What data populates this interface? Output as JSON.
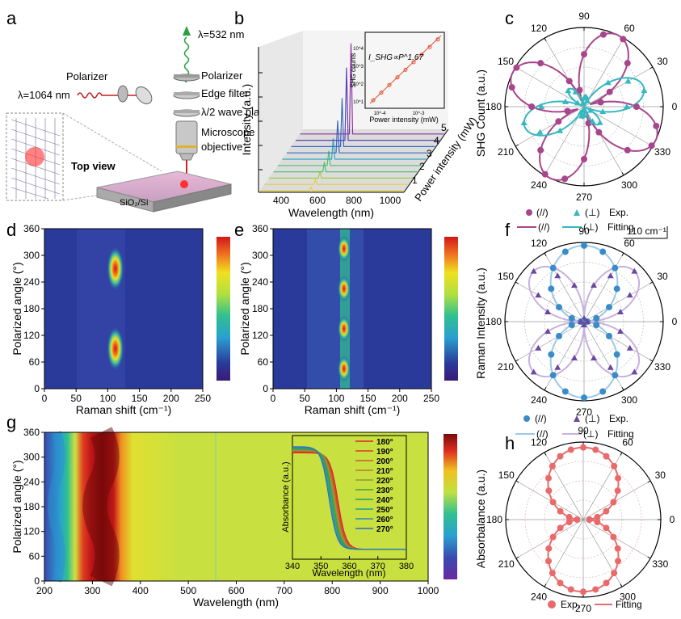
{
  "panels": {
    "a": {
      "letter": "a",
      "wavelength_top": "λ=532 nm",
      "wavelength_in": "λ=1064 nm",
      "labels": [
        "Polarizer",
        "Edge filter",
        "λ/2 wave plate",
        "Microscope",
        "objective",
        "Polarizer"
      ],
      "top_view": "Top view",
      "substrate": "SiO₂/Si"
    },
    "b": {
      "letter": "b",
      "ylabel": "Intensity (a.u.)",
      "xlabel": "Wavelength (nm)",
      "zlabel": "Power intensity (mW)",
      "xticks": [
        "400",
        "600",
        "800",
        "1000"
      ],
      "zticks": [
        "1",
        "2",
        "3",
        "4",
        "5"
      ],
      "inset_label": "I_SHG∝P^1.67",
      "inset_ylabel": "SHG counts",
      "inset_xlabel": "Power intensity (mW)",
      "inset_xticks": [
        "10^-4",
        "10^-3"
      ],
      "inset_yticks": [
        "10^1",
        "10^2",
        "10^3",
        "10^4"
      ]
    },
    "c": {
      "letter": "c",
      "ylabel": "SHG Count (a.u.)",
      "angles": [
        "90",
        "60",
        "30",
        "0",
        "330",
        "300",
        "270",
        "240",
        "210",
        "180",
        "150",
        "120"
      ],
      "legend_exp": [
        "(//)",
        "(⊥)",
        "Exp."
      ],
      "legend_fit": [
        "(//)",
        "(⊥)",
        "Fitting"
      ]
    },
    "d": {
      "letter": "d",
      "ylabel": "Polarized angle (°)",
      "xlabel": "Raman shift (cm⁻¹)",
      "xticks": [
        "0",
        "50",
        "100",
        "150",
        "200",
        "250"
      ],
      "yticks": [
        "0",
        "60",
        "120",
        "180",
        "240",
        "300",
        "360"
      ]
    },
    "e": {
      "letter": "e",
      "ylabel": "Polarized angle (°)",
      "xlabel": "Raman shift (cm⁻¹)",
      "xticks": [
        "0",
        "50",
        "100",
        "150",
        "200",
        "250"
      ],
      "yticks": [
        "0",
        "60",
        "120",
        "180",
        "240",
        "300",
        "360"
      ]
    },
    "f": {
      "letter": "f",
      "ylabel": "Raman Intensity (a.u.)",
      "scale": "110 cm⁻¹",
      "angles": [
        "90",
        "60",
        "30",
        "0",
        "330",
        "300",
        "270",
        "240",
        "210",
        "180",
        "150",
        "120"
      ],
      "legend_exp": [
        "(//)",
        "(⊥)",
        "Exp."
      ],
      "legend_fit": [
        "(//)",
        "(⊥)",
        "Fitting"
      ]
    },
    "g": {
      "letter": "g",
      "ylabel": "Polarized angle (°)",
      "xlabel": "Wavelength (nm)",
      "xticks": [
        "200",
        "300",
        "400",
        "500",
        "600",
        "700",
        "800",
        "900",
        "1000"
      ],
      "yticks": [
        "0",
        "60",
        "120",
        "180",
        "240",
        "300",
        "360"
      ],
      "inset_ylabel": "Absorbance (a.u.)",
      "inset_xlabel": "Wavelength (nm)",
      "inset_xticks": [
        "340",
        "350",
        "360",
        "370",
        "380"
      ],
      "inset_legend": [
        "180°",
        "190°",
        "200°",
        "210°",
        "220°",
        "230°",
        "240°",
        "250°",
        "260°",
        "270°"
      ],
      "inset_colors": [
        "#e0202a",
        "#d83a2c",
        "#c95a30",
        "#b87a34",
        "#8a9a36",
        "#4f9e3a",
        "#2e9d55",
        "#25a08a",
        "#2a8fb0",
        "#2e6fc0"
      ]
    },
    "h": {
      "letter": "h",
      "ylabel": "Absorbalance (a.u.)",
      "angles": [
        "90",
        "60",
        "30",
        "0",
        "330",
        "300",
        "270",
        "240",
        "210",
        "180",
        "150",
        "120"
      ],
      "legend_exp": "Exp.",
      "legend_fit": "Fitting"
    }
  },
  "chart_data": [
    {
      "panel": "b",
      "type": "line",
      "title": "",
      "xlabel": "Wavelength (nm)",
      "ylabel": "Intensity (a.u.)",
      "xlim": [
        300,
        1100
      ],
      "series": [
        {
          "name": "1",
          "peak_x": 532
        },
        {
          "name": "2",
          "peak_x": 532
        },
        {
          "name": "3",
          "peak_x": 532
        },
        {
          "name": "4",
          "peak_x": 532
        },
        {
          "name": "5",
          "peak_x": 532
        }
      ]
    },
    {
      "panel": "b-inset",
      "type": "scatter",
      "xlabel": "Power intensity (mW)",
      "ylabel": "SHG counts",
      "annotation": "I_SHG∝P^1.67",
      "x_scale": "log",
      "y_scale": "log"
    },
    {
      "panel": "c",
      "type": "scatter",
      "ylabel": "SHG Count (a.u.)",
      "series": [
        {
          "name": "(//) Exp."
        },
        {
          "name": "(⊥) Exp."
        },
        {
          "name": "(//) Fitting"
        },
        {
          "name": "(⊥) Fitting"
        }
      ]
    },
    {
      "panel": "d",
      "type": "heatmap",
      "xlabel": "Raman shift (cm⁻¹)",
      "ylabel": "Polarized angle (°)",
      "xlim": [
        0,
        250
      ],
      "ylim": [
        0,
        360
      ],
      "peaks": [
        {
          "x": 112,
          "y": 90
        },
        {
          "x": 112,
          "y": 270
        }
      ]
    },
    {
      "panel": "e",
      "type": "heatmap",
      "xlabel": "Raman shift (cm⁻¹)",
      "ylabel": "Polarized angle (°)",
      "xlim": [
        0,
        250
      ],
      "ylim": [
        0,
        360
      ],
      "peaks": [
        {
          "x": 112,
          "y": 45
        },
        {
          "x": 112,
          "y": 135
        },
        {
          "x": 112,
          "y": 225
        },
        {
          "x": 112,
          "y": 315
        }
      ]
    },
    {
      "panel": "f",
      "type": "scatter",
      "ylabel": "Raman Intensity (a.u.)",
      "series": [
        {
          "name": "(//) Exp."
        },
        {
          "name": "(⊥) Exp."
        },
        {
          "name": "(//) Fitting"
        },
        {
          "name": "(⊥) Fitting"
        }
      ]
    },
    {
      "panel": "g",
      "type": "heatmap",
      "xlabel": "Wavelength (nm)",
      "ylabel": "Polarized angle (°)",
      "xlim": [
        200,
        1000
      ],
      "ylim": [
        0,
        360
      ]
    },
    {
      "panel": "g-inset",
      "type": "line",
      "xlabel": "Wavelength (nm)",
      "ylabel": "Absorbance (a.u.)",
      "xlim": [
        340,
        380
      ],
      "series": [
        {
          "name": "180°"
        },
        {
          "name": "190°"
        },
        {
          "name": "200°"
        },
        {
          "name": "210°"
        },
        {
          "name": "220°"
        },
        {
          "name": "230°"
        },
        {
          "name": "240°"
        },
        {
          "name": "250°"
        },
        {
          "name": "260°"
        },
        {
          "name": "270°"
        }
      ]
    },
    {
      "panel": "h",
      "type": "scatter",
      "ylabel": "Absorbalance (a.u.)",
      "series": [
        {
          "name": "Exp."
        },
        {
          "name": "Fitting"
        }
      ]
    }
  ]
}
